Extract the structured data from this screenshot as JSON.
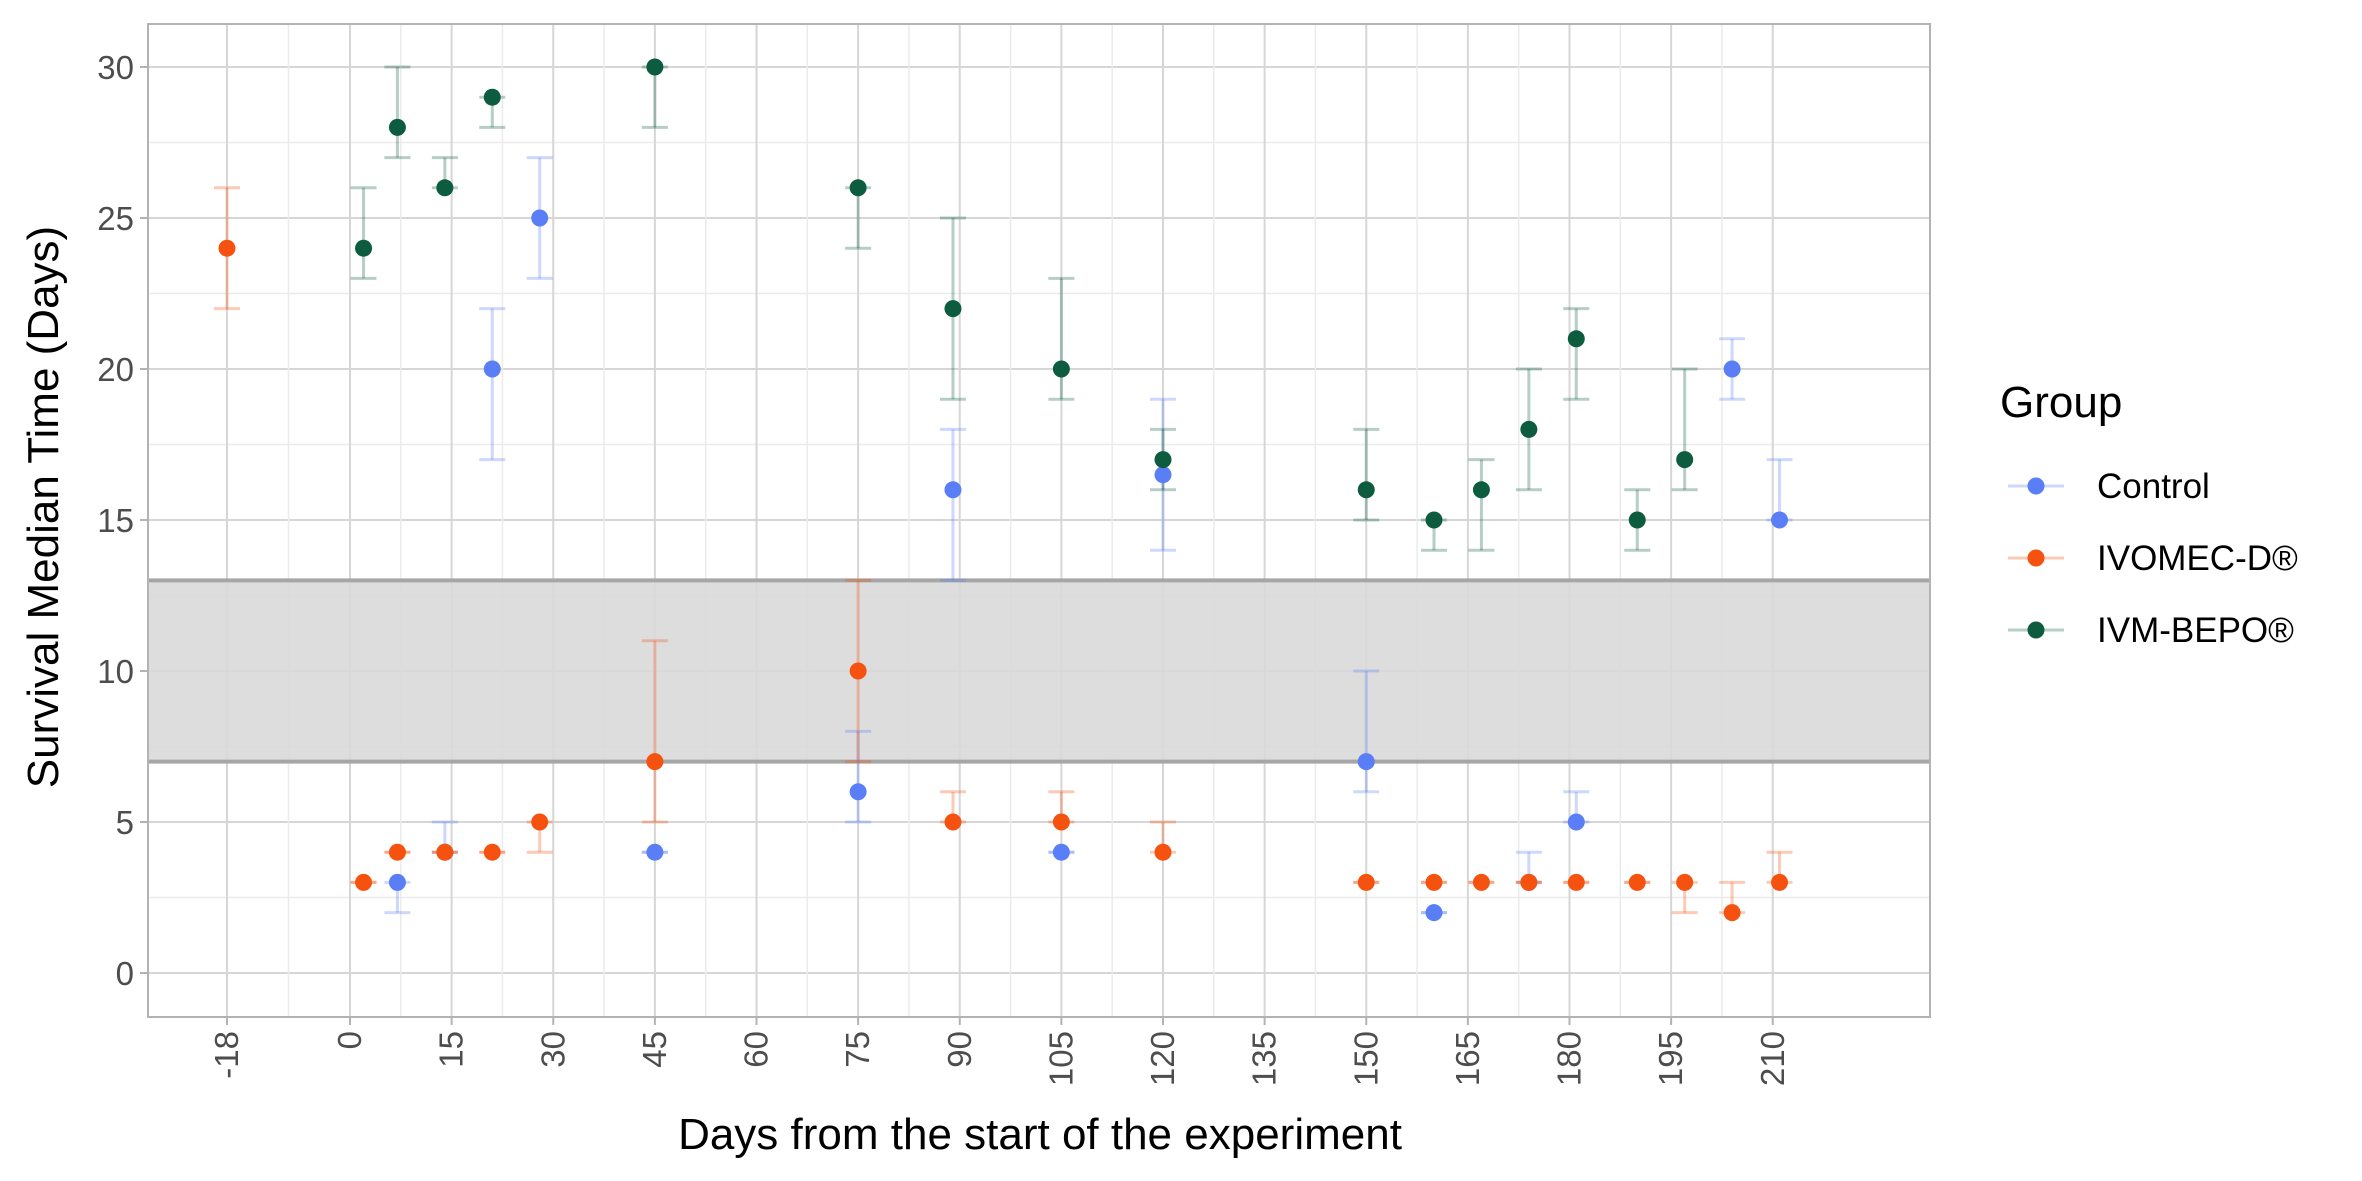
{
  "chart_data": {
    "type": "scatter",
    "xlabel": "Days from the start of the experiment",
    "ylabel": "Survival Median Time (Days)",
    "x_ticks": [
      "-18",
      "0",
      "15",
      "30",
      "45",
      "60",
      "75",
      "90",
      "105",
      "120",
      "135",
      "150",
      "165",
      "180",
      "195",
      "210"
    ],
    "y_ticks": [
      "0",
      "5",
      "10",
      "15",
      "20",
      "25",
      "30"
    ],
    "ylim": [
      -1.5,
      31.5
    ],
    "grid": true,
    "band": {
      "ymin": 7,
      "ymax": 13,
      "color": "#d9d9d9"
    },
    "legend": {
      "title": "Group",
      "position": "right"
    },
    "series": [
      {
        "name": "Control",
        "color": "#5a7ef5",
        "points": [
          {
            "x": 7,
            "y": 3,
            "ylo": 2,
            "yhi": 3
          },
          {
            "x": 14,
            "y": 4,
            "ylo": 4,
            "yhi": 5
          },
          {
            "x": 21,
            "y": 20,
            "ylo": 17,
            "yhi": 22
          },
          {
            "x": 28,
            "y": 25,
            "ylo": 23,
            "yhi": 27
          },
          {
            "x": 45,
            "y": 4,
            "ylo": 4,
            "yhi": 4
          },
          {
            "x": 75,
            "y": 6,
            "ylo": 5,
            "yhi": 8
          },
          {
            "x": 89,
            "y": 16,
            "ylo": 13,
            "yhi": 18
          },
          {
            "x": 105,
            "y": 4,
            "ylo": 4,
            "yhi": 4
          },
          {
            "x": 120,
            "y": 16.5,
            "ylo": 14,
            "yhi": 19
          },
          {
            "x": 150,
            "y": 7,
            "ylo": 6,
            "yhi": 10
          },
          {
            "x": 160,
            "y": 2,
            "ylo": 2,
            "yhi": 2
          },
          {
            "x": 174,
            "y": 3,
            "ylo": 3,
            "yhi": 4
          },
          {
            "x": 181,
            "y": 5,
            "ylo": 5,
            "yhi": 6
          },
          {
            "x": 204,
            "y": 20,
            "ylo": 19,
            "yhi": 21
          },
          {
            "x": 211,
            "y": 15,
            "ylo": 15,
            "yhi": 17
          }
        ]
      },
      {
        "name": "IVOMEC-D®",
        "color": "#f5520f",
        "points": [
          {
            "x": -18,
            "y": 24,
            "ylo": 22,
            "yhi": 26
          },
          {
            "x": 2,
            "y": 3,
            "ylo": 3,
            "yhi": 3
          },
          {
            "x": 7,
            "y": 4,
            "ylo": 4,
            "yhi": 4
          },
          {
            "x": 14,
            "y": 4,
            "ylo": 4,
            "yhi": 4
          },
          {
            "x": 21,
            "y": 4,
            "ylo": 4,
            "yhi": 4
          },
          {
            "x": 28,
            "y": 5,
            "ylo": 4,
            "yhi": 5
          },
          {
            "x": 45,
            "y": 7,
            "ylo": 5,
            "yhi": 11
          },
          {
            "x": 75,
            "y": 10,
            "ylo": 7,
            "yhi": 13
          },
          {
            "x": 89,
            "y": 5,
            "ylo": 5,
            "yhi": 6
          },
          {
            "x": 105,
            "y": 5,
            "ylo": 5,
            "yhi": 6
          },
          {
            "x": 120,
            "y": 4,
            "ylo": 4,
            "yhi": 5
          },
          {
            "x": 150,
            "y": 3,
            "ylo": 3,
            "yhi": 3
          },
          {
            "x": 160,
            "y": 3,
            "ylo": 3,
            "yhi": 3
          },
          {
            "x": 167,
            "y": 3,
            "ylo": 3,
            "yhi": 3
          },
          {
            "x": 174,
            "y": 3,
            "ylo": 3,
            "yhi": 3
          },
          {
            "x": 181,
            "y": 3,
            "ylo": 3,
            "yhi": 3
          },
          {
            "x": 190,
            "y": 3,
            "ylo": 3,
            "yhi": 3
          },
          {
            "x": 197,
            "y": 3,
            "ylo": 2,
            "yhi": 3
          },
          {
            "x": 204,
            "y": 2,
            "ylo": 2,
            "yhi": 3
          },
          {
            "x": 211,
            "y": 3,
            "ylo": 3,
            "yhi": 4
          }
        ]
      },
      {
        "name": "IVM-BEPO®",
        "color": "#0d5c3f",
        "points": [
          {
            "x": 2,
            "y": 24,
            "ylo": 23,
            "yhi": 26
          },
          {
            "x": 7,
            "y": 28,
            "ylo": 27,
            "yhi": 30
          },
          {
            "x": 14,
            "y": 26,
            "ylo": 26,
            "yhi": 27
          },
          {
            "x": 21,
            "y": 29,
            "ylo": 28,
            "yhi": 29
          },
          {
            "x": 45,
            "y": 30,
            "ylo": 28,
            "yhi": 30
          },
          {
            "x": 75,
            "y": 26,
            "ylo": 24,
            "yhi": 26
          },
          {
            "x": 89,
            "y": 22,
            "ylo": 19,
            "yhi": 25
          },
          {
            "x": 105,
            "y": 20,
            "ylo": 19,
            "yhi": 23
          },
          {
            "x": 120,
            "y": 17,
            "ylo": 16,
            "yhi": 18
          },
          {
            "x": 150,
            "y": 16,
            "ylo": 15,
            "yhi": 18
          },
          {
            "x": 160,
            "y": 15,
            "ylo": 14,
            "yhi": 15
          },
          {
            "x": 167,
            "y": 16,
            "ylo": 14,
            "yhi": 17
          },
          {
            "x": 174,
            "y": 18,
            "ylo": 16,
            "yhi": 20
          },
          {
            "x": 181,
            "y": 21,
            "ylo": 19,
            "yhi": 22
          },
          {
            "x": 190,
            "y": 15,
            "ylo": 14,
            "yhi": 16
          },
          {
            "x": 197,
            "y": 17,
            "ylo": 16,
            "yhi": 20
          }
        ]
      }
    ]
  }
}
